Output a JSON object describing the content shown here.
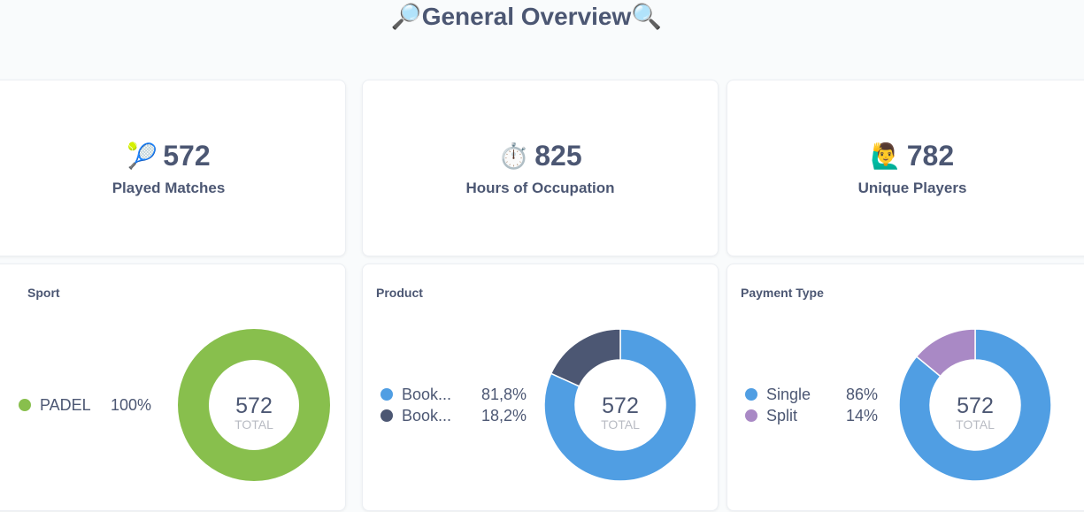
{
  "header": {
    "title": "General Overview",
    "icon_left": "magnifier-left-icon",
    "icon_right": "magnifier-right-icon"
  },
  "kpis": [
    {
      "icon": "tennis-ball-icon",
      "emoji": "🎾",
      "value": "572",
      "label": "Played Matches"
    },
    {
      "icon": "stopwatch-icon",
      "emoji": "⏱️",
      "value": "825",
      "label": "Hours of Occupation"
    },
    {
      "icon": "person-raising-hand-icon",
      "emoji": "🙋‍♂️",
      "value": "782",
      "label": "Unique Players"
    }
  ],
  "chart_data": [
    {
      "type": "pie",
      "title": "Sport",
      "total": "572",
      "total_label": "TOTAL",
      "categories": [
        "PADEL"
      ],
      "values": [
        100
      ],
      "labels": [
        "100%"
      ],
      "colors": [
        "#88bf4d"
      ]
    },
    {
      "type": "pie",
      "title": "Product",
      "total": "572",
      "total_label": "TOTAL",
      "categories": [
        "Book...",
        "Book..."
      ],
      "values": [
        81.8,
        18.2
      ],
      "labels": [
        "81,8%",
        "18,2%"
      ],
      "colors": [
        "#509ee3",
        "#4c5773"
      ]
    },
    {
      "type": "pie",
      "title": "Payment Type",
      "total": "572",
      "total_label": "TOTAL",
      "categories": [
        "Single",
        "Split"
      ],
      "values": [
        86,
        14
      ],
      "labels": [
        "86%",
        "14%"
      ],
      "colors": [
        "#509ee3",
        "#a989c5"
      ]
    }
  ]
}
